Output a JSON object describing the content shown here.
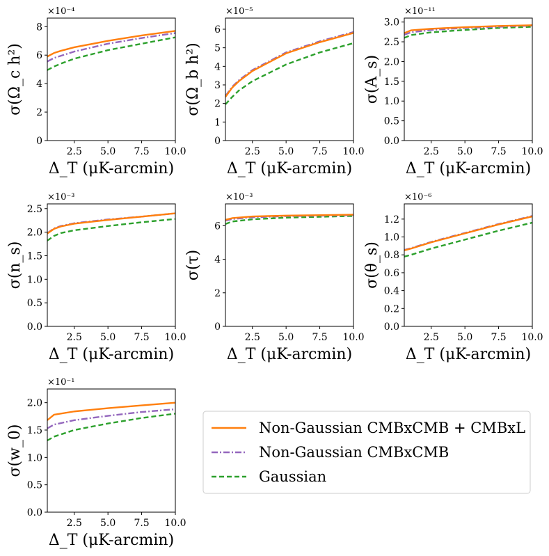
{
  "legend": {
    "placement": "lower-right",
    "entries": [
      {
        "label": "Non-Gaussian CMBxCMB + CMBxL",
        "color": "#ff7f0e",
        "dash": "solid"
      },
      {
        "label": "Non-Gaussian CMBxCMB",
        "color": "#9467bd",
        "dash": "dashdot"
      },
      {
        "label": "Gaussian",
        "color": "#2ca02c",
        "dash": "dashed"
      }
    ]
  },
  "chart_data": [
    {
      "type": "line",
      "xlabel": "Δ_T (μK-arcmin)",
      "ylabel": "σ(Ω_c h²)",
      "exponent": "×10⁻⁴",
      "xlim": [
        0.5,
        10
      ],
      "ylim": [
        0,
        8.6
      ],
      "xticks": [
        2.5,
        5.0,
        7.5,
        10.0
      ],
      "yticks": [
        0,
        2,
        4,
        6,
        8
      ],
      "ytick_labels": [
        "0",
        "2",
        "4",
        "6",
        "8"
      ],
      "x": [
        0.5,
        1.0,
        1.5,
        2.5,
        5.0,
        7.5,
        10.0
      ],
      "series": [
        {
          "name": "Non-Gaussian CMBxCMB + CMBxL",
          "values": [
            5.9,
            6.15,
            6.3,
            6.55,
            7.0,
            7.38,
            7.7
          ]
        },
        {
          "name": "Non-Gaussian CMBxCMB",
          "values": [
            5.55,
            5.8,
            5.95,
            6.25,
            6.8,
            7.2,
            7.55
          ]
        },
        {
          "name": "Gaussian",
          "values": [
            4.95,
            5.2,
            5.4,
            5.75,
            6.35,
            6.8,
            7.25
          ]
        }
      ]
    },
    {
      "type": "line",
      "xlabel": "Δ_T (μK-arcmin)",
      "ylabel": "σ(Ω_b h²)",
      "exponent": "×10⁻⁵",
      "xlim": [
        0.5,
        10
      ],
      "ylim": [
        0,
        6.6
      ],
      "xticks": [
        2.5,
        5.0,
        7.5,
        10.0
      ],
      "yticks": [
        0,
        1,
        2,
        3,
        4,
        5,
        6
      ],
      "ytick_labels": [
        "0",
        "1",
        "2",
        "3",
        "4",
        "5",
        "6"
      ],
      "x": [
        0.5,
        1.0,
        1.5,
        2.5,
        5.0,
        7.5,
        10.0
      ],
      "series": [
        {
          "name": "Non-Gaussian CMBxCMB + CMBxL",
          "values": [
            2.35,
            2.85,
            3.2,
            3.75,
            4.7,
            5.3,
            5.8
          ]
        },
        {
          "name": "Non-Gaussian CMBxCMB",
          "values": [
            2.4,
            2.9,
            3.25,
            3.8,
            4.75,
            5.35,
            5.85
          ]
        },
        {
          "name": "Gaussian",
          "values": [
            1.95,
            2.35,
            2.7,
            3.2,
            4.1,
            4.75,
            5.25
          ]
        }
      ]
    },
    {
      "type": "line",
      "xlabel": "Δ_T (μK-arcmin)",
      "ylabel": "σ(A_s)",
      "exponent": "×10⁻¹¹",
      "xlim": [
        0.5,
        10
      ],
      "ylim": [
        0,
        3.1
      ],
      "xticks": [
        2.5,
        5.0,
        7.5,
        10.0
      ],
      "yticks": [
        0,
        0.5,
        1.0,
        1.5,
        2.0,
        2.5,
        3.0
      ],
      "ytick_labels": [
        "0.0",
        "0.5",
        "1.0",
        "1.5",
        "2.0",
        "2.5",
        "3.0"
      ],
      "x": [
        0.5,
        1.0,
        2.5,
        5.0,
        7.5,
        10.0
      ],
      "series": [
        {
          "name": "Non-Gaussian CMBxCMB + CMBxL",
          "values": [
            2.72,
            2.79,
            2.83,
            2.87,
            2.9,
            2.92
          ]
        },
        {
          "name": "Non-Gaussian CMBxCMB",
          "values": [
            2.68,
            2.74,
            2.8,
            2.85,
            2.88,
            2.91
          ]
        },
        {
          "name": "Gaussian",
          "values": [
            2.6,
            2.67,
            2.74,
            2.8,
            2.85,
            2.88
          ]
        }
      ]
    },
    {
      "type": "line",
      "xlabel": "Δ_T (μK-arcmin)",
      "ylabel": "σ(n_s)",
      "exponent": "×10⁻³",
      "xlim": [
        0.5,
        10
      ],
      "ylim": [
        0,
        2.6
      ],
      "xticks": [
        2.5,
        5.0,
        7.5,
        10.0
      ],
      "yticks": [
        0,
        0.5,
        1.0,
        1.5,
        2.0,
        2.5
      ],
      "ytick_labels": [
        "0.0",
        "0.5",
        "1.0",
        "1.5",
        "2.0",
        "2.5"
      ],
      "x": [
        0.5,
        1.0,
        1.5,
        2.5,
        5.0,
        7.5,
        10.0
      ],
      "series": [
        {
          "name": "Non-Gaussian CMBxCMB + CMBxL",
          "values": [
            1.97,
            2.07,
            2.12,
            2.18,
            2.26,
            2.33,
            2.4
          ]
        },
        {
          "name": "Non-Gaussian CMBxCMB",
          "values": [
            1.98,
            2.08,
            2.13,
            2.19,
            2.27,
            2.33,
            2.4
          ]
        },
        {
          "name": "Gaussian",
          "values": [
            1.82,
            1.92,
            1.98,
            2.04,
            2.13,
            2.21,
            2.28
          ]
        }
      ]
    },
    {
      "type": "line",
      "xlabel": "Δ_T (μK-arcmin)",
      "ylabel": "σ(τ)",
      "exponent": "×10⁻³",
      "xlim": [
        0.5,
        10
      ],
      "ylim": [
        0,
        7.3
      ],
      "xticks": [
        2.5,
        5.0,
        7.5,
        10.0
      ],
      "yticks": [
        0,
        2,
        4,
        6
      ],
      "ytick_labels": [
        "0",
        "2",
        "4",
        "6"
      ],
      "x": [
        0.5,
        1.0,
        2.5,
        5.0,
        7.5,
        10.0
      ],
      "series": [
        {
          "name": "Non-Gaussian CMBxCMB + CMBxL",
          "values": [
            6.35,
            6.45,
            6.55,
            6.6,
            6.63,
            6.66
          ]
        },
        {
          "name": "Non-Gaussian CMBxCMB",
          "values": [
            6.3,
            6.4,
            6.5,
            6.57,
            6.6,
            6.63
          ]
        },
        {
          "name": "Gaussian",
          "values": [
            6.1,
            6.25,
            6.38,
            6.48,
            6.53,
            6.58
          ]
        }
      ]
    },
    {
      "type": "line",
      "xlabel": "Δ_T (μK-arcmin)",
      "ylabel": "σ(θ_s)",
      "exponent": "×10⁻⁶",
      "xlim": [
        0.5,
        10
      ],
      "ylim": [
        0,
        1.37
      ],
      "xticks": [
        2.5,
        5.0,
        7.5,
        10.0
      ],
      "yticks": [
        0,
        0.2,
        0.4,
        0.6,
        0.8,
        1.0,
        1.2
      ],
      "ytick_labels": [
        "0.0",
        "0.2",
        "0.4",
        "0.6",
        "0.8",
        "1.0",
        "1.2"
      ],
      "x": [
        0.5,
        1.0,
        2.5,
        5.0,
        7.5,
        10.0
      ],
      "series": [
        {
          "name": "Non-Gaussian CMBxCMB + CMBxL",
          "values": [
            0.85,
            0.87,
            0.94,
            1.04,
            1.14,
            1.23
          ]
        },
        {
          "name": "Non-Gaussian CMBxCMB",
          "values": [
            0.855,
            0.875,
            0.945,
            1.045,
            1.145,
            1.235
          ]
        },
        {
          "name": "Gaussian",
          "values": [
            0.78,
            0.8,
            0.87,
            0.97,
            1.07,
            1.16
          ]
        }
      ]
    },
    {
      "type": "line",
      "xlabel": "Δ_T (μK-arcmin)",
      "ylabel": "σ(w_0)",
      "exponent": "×10⁻¹",
      "xlim": [
        0.5,
        10
      ],
      "ylim": [
        0,
        2.25
      ],
      "xticks": [
        2.5,
        5.0,
        7.5,
        10.0
      ],
      "yticks": [
        0,
        0.5,
        1.0,
        1.5,
        2.0
      ],
      "ytick_labels": [
        "0.0",
        "0.5",
        "1.0",
        "1.5",
        "2.0"
      ],
      "x": [
        0.5,
        1.0,
        2.5,
        5.0,
        7.5,
        10.0
      ],
      "series": [
        {
          "name": "Non-Gaussian CMBxCMB + CMBxL",
          "values": [
            1.68,
            1.78,
            1.84,
            1.9,
            1.95,
            2.0
          ]
        },
        {
          "name": "Non-Gaussian CMBxCMB",
          "values": [
            1.53,
            1.6,
            1.68,
            1.76,
            1.83,
            1.88
          ]
        },
        {
          "name": "Gaussian",
          "values": [
            1.31,
            1.38,
            1.5,
            1.62,
            1.72,
            1.8
          ]
        }
      ]
    }
  ]
}
